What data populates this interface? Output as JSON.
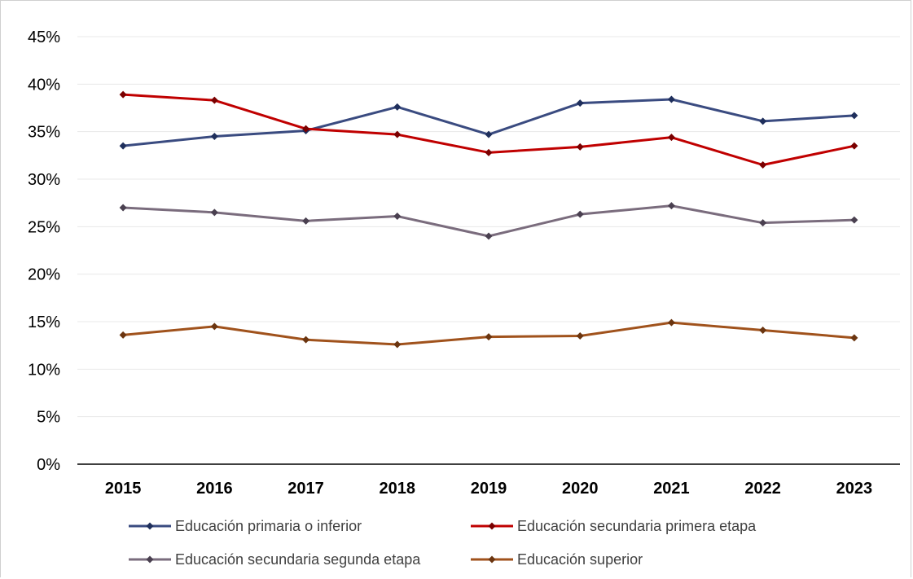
{
  "chart_data": {
    "type": "line",
    "title": "",
    "xlabel": "",
    "ylabel": "",
    "ylim": [
      0,
      45
    ],
    "ytick_labels": [
      "0%",
      "5%",
      "10%",
      "15%",
      "20%",
      "25%",
      "30%",
      "35%",
      "40%",
      "45%"
    ],
    "grid": true,
    "legend_position": "bottom",
    "categories": [
      "2015",
      "2016",
      "2017",
      "2018",
      "2019",
      "2020",
      "2021",
      "2022",
      "2023"
    ],
    "series": [
      {
        "name": "Educación primaria o inferior",
        "color": "#3A4B80",
        "marker_color": "#1F2F5C",
        "values": [
          33.5,
          34.5,
          35.1,
          37.6,
          34.7,
          38.0,
          38.4,
          36.1,
          36.7
        ]
      },
      {
        "name": "Educación secundaria primera etapa",
        "color": "#C00000",
        "marker_color": "#7A0000",
        "values": [
          38.9,
          38.3,
          35.3,
          34.7,
          32.8,
          33.4,
          34.4,
          31.5,
          33.5
        ]
      },
      {
        "name": "Educación secundaria segunda etapa",
        "color": "#7A6C7D",
        "marker_color": "#4A4050",
        "values": [
          27.0,
          26.5,
          25.6,
          26.1,
          24.0,
          26.3,
          27.2,
          25.4,
          25.7
        ]
      },
      {
        "name": "Educación superior",
        "color": "#A0521C",
        "marker_color": "#6B3510",
        "values": [
          13.6,
          14.5,
          13.1,
          12.6,
          13.4,
          13.5,
          14.9,
          14.1,
          13.3
        ]
      }
    ]
  }
}
